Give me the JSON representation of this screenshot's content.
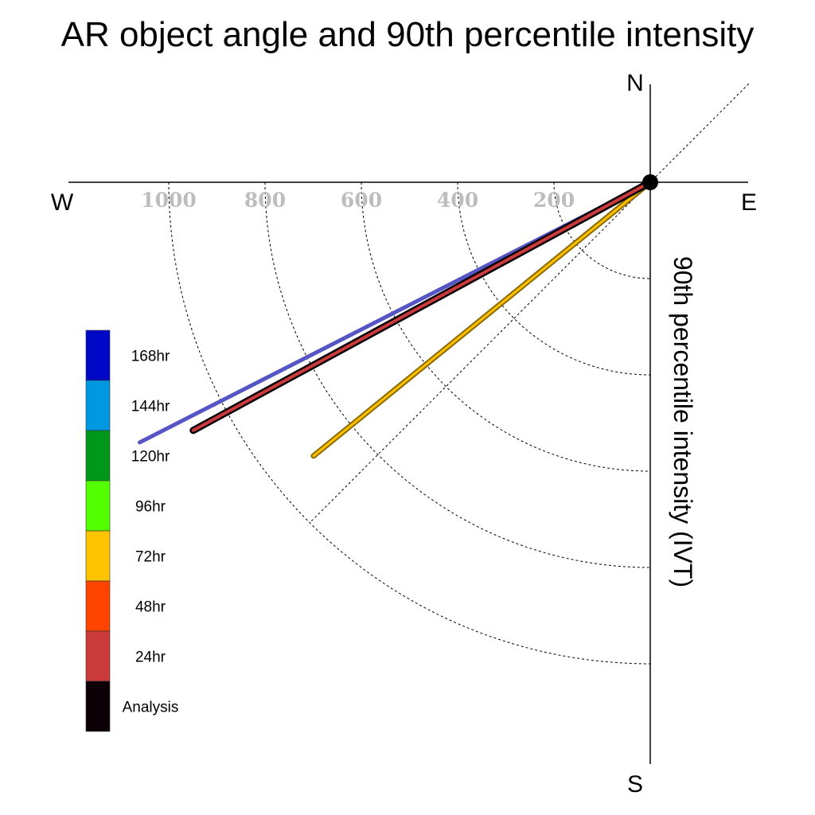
{
  "chart_data": {
    "type": "polar-vector",
    "title": "AR object angle and 90th percentile intensity",
    "radial_axis_label": "90th percentile intensity (IVT)",
    "radial_range": [
      0,
      1000
    ],
    "radial_ticks": [
      200,
      400,
      600,
      800,
      1000
    ],
    "radial_tick_labels": [
      "200",
      "400",
      "600",
      "800",
      "1000"
    ],
    "compass": {
      "north": "N",
      "south": "S",
      "east": "E",
      "west": "W"
    },
    "grid": true,
    "quadrant_shown": "south-west",
    "diagonal_reference_deg": 45,
    "series": [
      {
        "name": "Analysis",
        "angle_deg": 241.5,
        "intensity": 1080,
        "color": "#0a0006"
      },
      {
        "name": "24hr",
        "angle_deg": 241.5,
        "intensity": 1080,
        "color": "#cc3b3b"
      },
      {
        "name": "168hr",
        "angle_deg": 243.0,
        "intensity": 1190,
        "color": "#5555c4"
      },
      {
        "name": "72hr",
        "angle_deg": 230.9,
        "intensity": 901,
        "color": "#ffc000"
      }
    ],
    "legend": {
      "placement": "left",
      "items": [
        {
          "label": "168hr",
          "color": "#0008c8"
        },
        {
          "label": "144hr",
          "color": "#0098e0"
        },
        {
          "label": "120hr",
          "color": "#00981a"
        },
        {
          "label": "96hr",
          "color": "#54ff00"
        },
        {
          "label": "72hr",
          "color": "#ffc400"
        },
        {
          "label": "48hr",
          "color": "#ff4400"
        },
        {
          "label": "24hr",
          "color": "#cc3b3b"
        },
        {
          "label": "Analysis",
          "color": "#0a0006"
        }
      ]
    }
  }
}
